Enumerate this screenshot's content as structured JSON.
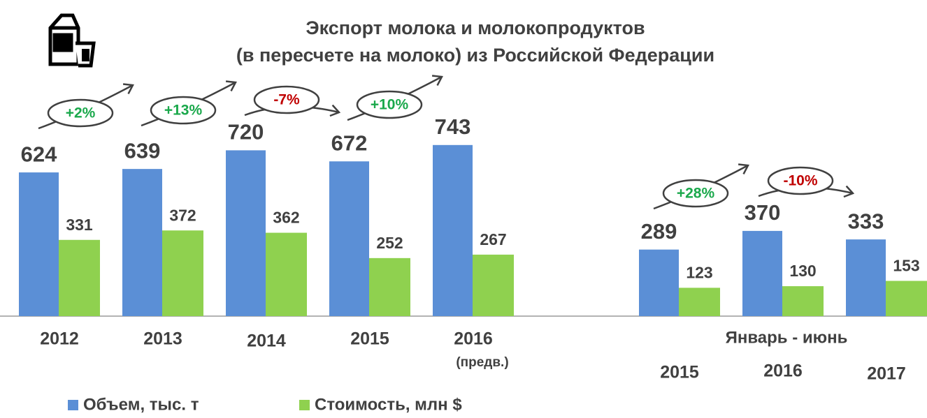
{
  "chart_data": {
    "type": "bar",
    "title": [
      "Экспорт молока и молокопродуктов",
      "(в пересчете на молоко) из Российской Федерации"
    ],
    "categories": [
      "2012",
      "2013",
      "2014",
      "2015",
      "2016",
      "2015",
      "2016",
      "2017"
    ],
    "preliminary_note": "(предв.)",
    "period_label": "Январь - июнь",
    "series": [
      {
        "name": "Объем, тыс. т",
        "color": "#5b8fd6",
        "values": [
          624,
          639,
          720,
          672,
          743,
          289,
          370,
          333
        ]
      },
      {
        "name": "Стоимость, млн $",
        "color": "#8fd14f",
        "values": [
          331,
          372,
          362,
          252,
          267,
          123,
          130,
          153
        ]
      }
    ],
    "changes": [
      {
        "label": "+2%",
        "value": 2
      },
      {
        "label": "+13%",
        "value": 13
      },
      {
        "label": "-7%",
        "value": -7
      },
      {
        "label": "+10%",
        "value": 10
      },
      {
        "label": "+28%",
        "value": 28
      },
      {
        "label": "-10%",
        "value": -10
      }
    ],
    "increase_color": "#1aa84b",
    "decrease_color": "#c00000"
  }
}
